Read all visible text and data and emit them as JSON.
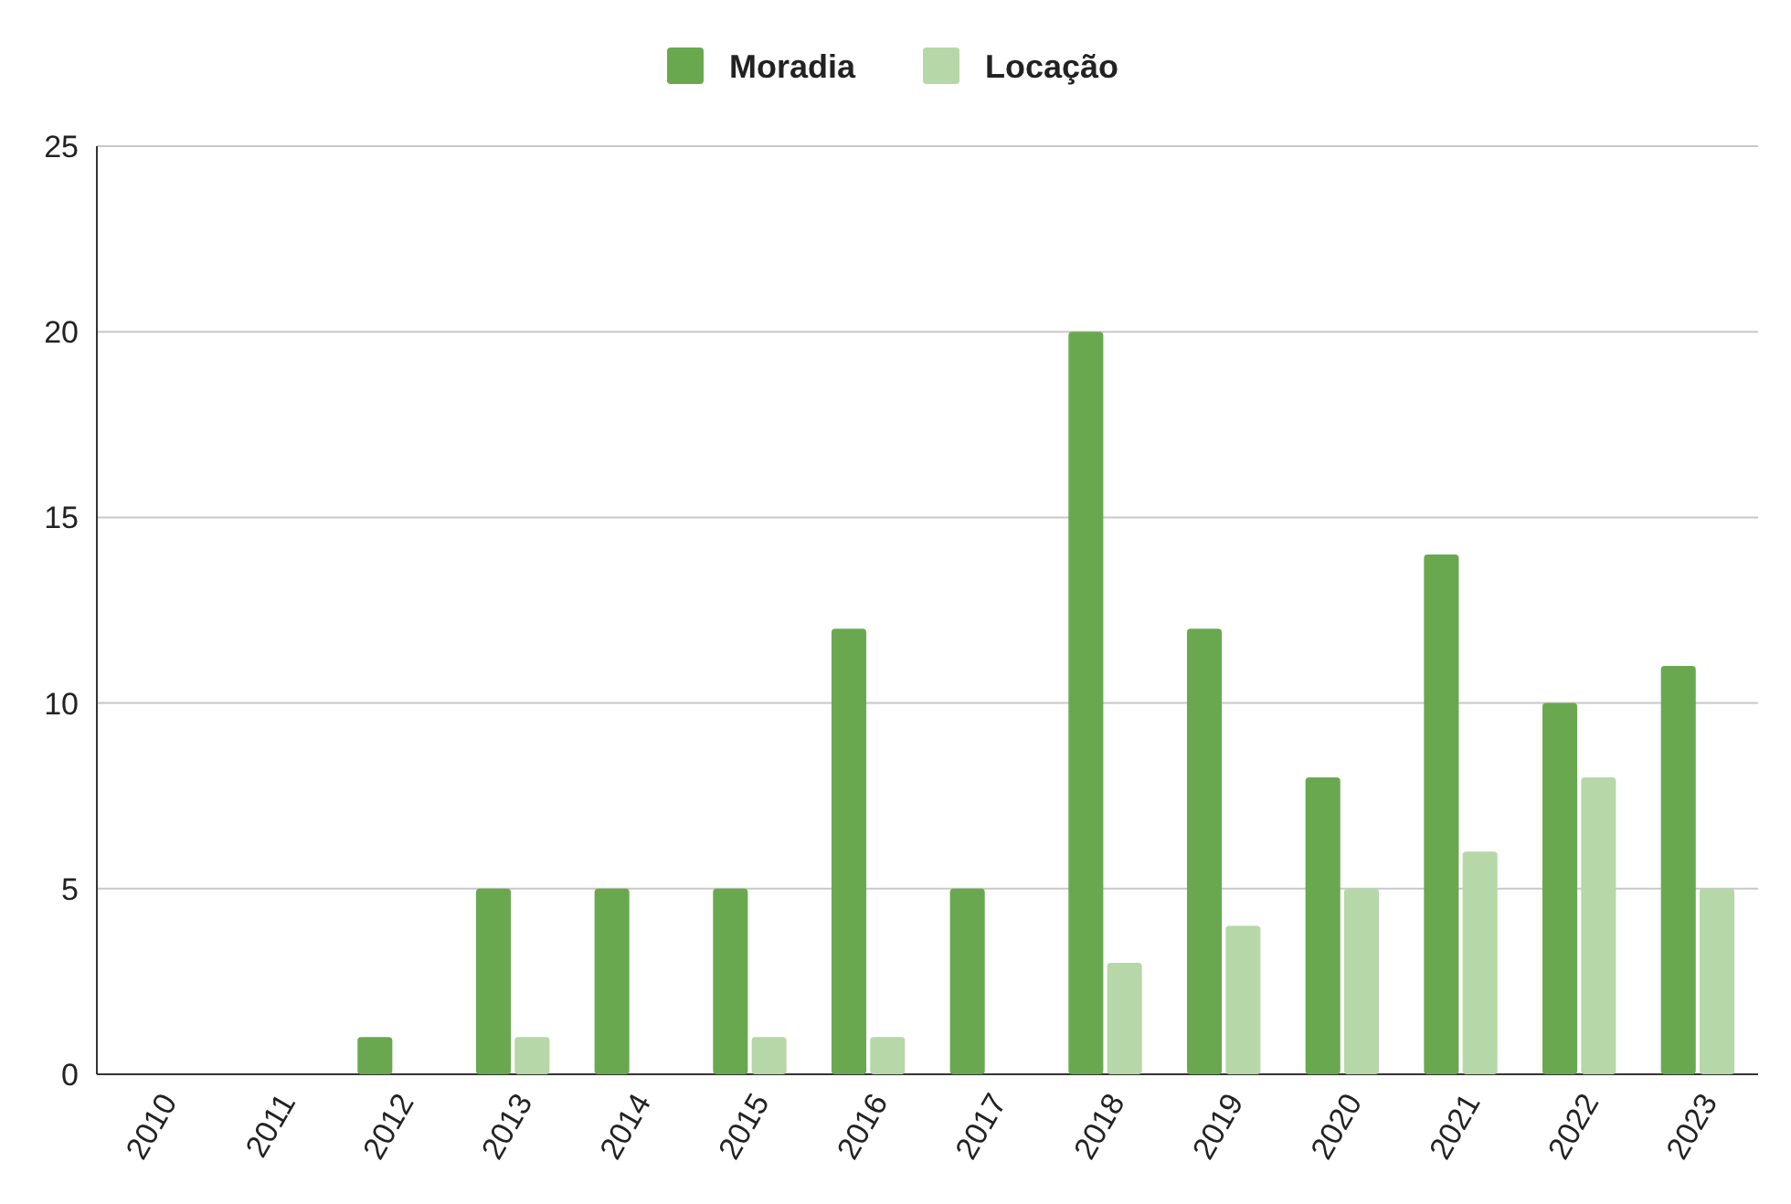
{
  "chart_data": {
    "type": "bar",
    "categories": [
      "2010",
      "2011",
      "2012",
      "2013",
      "2014",
      "2015",
      "2016",
      "2017",
      "2018",
      "2019",
      "2020",
      "2021",
      "2022",
      "2023"
    ],
    "series": [
      {
        "name": "Moradia",
        "color": "#6aa84f",
        "values": [
          0,
          0,
          1,
          5,
          5,
          5,
          12,
          5,
          20,
          12,
          8,
          14,
          10,
          11
        ]
      },
      {
        "name": "Locação",
        "color": "#b6d7a8",
        "values": [
          0,
          0,
          0,
          1,
          0,
          1,
          1,
          0,
          3,
          4,
          5,
          6,
          8,
          5
        ]
      }
    ],
    "ylim": [
      0,
      25
    ],
    "yticks": [
      0,
      5,
      10,
      15,
      20,
      25
    ],
    "grid": "y",
    "legend": "top"
  }
}
